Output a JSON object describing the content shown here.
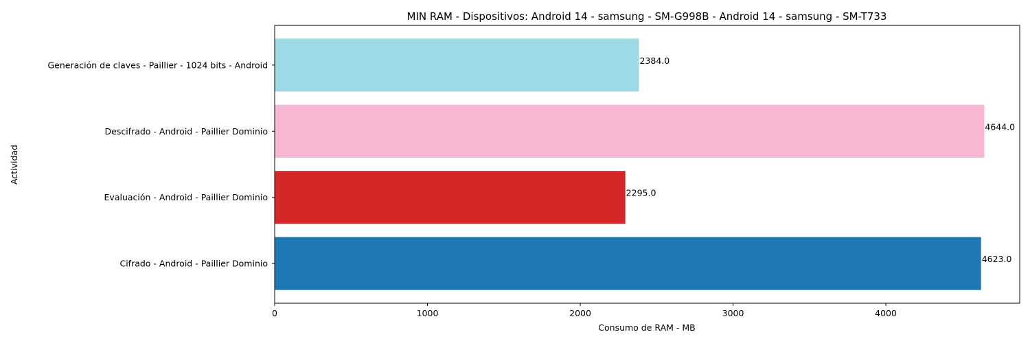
{
  "chart_data": {
    "type": "bar",
    "orientation": "horizontal",
    "title": "MIN RAM - Dispositivos: Android 14 - samsung - SM-G998B - Android 14 - samsung - SM-T733",
    "xlabel": "Consumo de RAM - MB",
    "ylabel": "Actividad",
    "categories": [
      "Cifrado - Android - Paillier Dominio",
      "Evaluación - Android - Paillier Dominio",
      "Descifrado - Android - Paillier Dominio",
      "Generación de claves - Paillier - 1024 bits - Android"
    ],
    "values": [
      4623.0,
      2295.0,
      4644.0,
      2384.0
    ],
    "value_labels": [
      "4623.0",
      "2295.0",
      "4644.0",
      "2384.0"
    ],
    "colors": [
      "#1f77b4",
      "#d62728",
      "#f7b6d2",
      "#9edae5"
    ],
    "xlim": [
      0,
      4876
    ],
    "xticks": [
      0,
      1000,
      2000,
      3000,
      4000
    ],
    "xtick_labels": [
      "0",
      "1000",
      "2000",
      "3000",
      "4000"
    ],
    "grid": false,
    "legend": "none"
  }
}
